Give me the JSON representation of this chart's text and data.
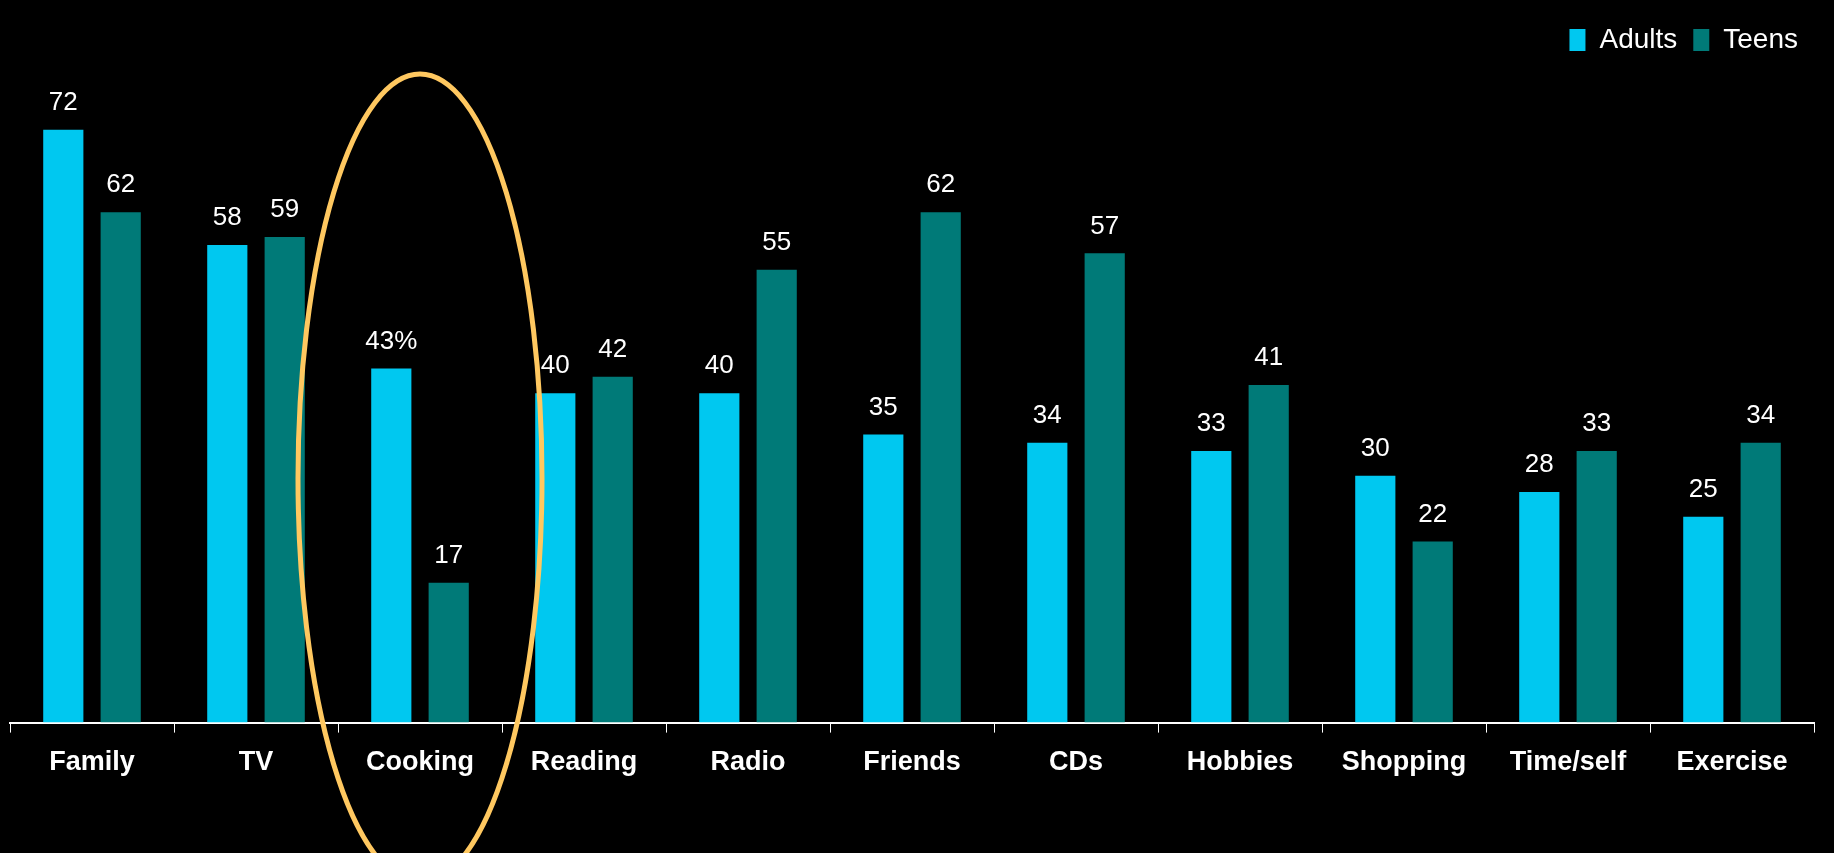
{
  "chart_data": {
    "type": "bar",
    "categories": [
      "Family",
      "TV",
      "Cooking",
      "Reading",
      "Radio",
      "Friends",
      "CDs",
      "Hobbies",
      "Shopping",
      "Time/self",
      "Exercise"
    ],
    "series": [
      {
        "name": "Adults",
        "color": "#00c8f0",
        "values": [
          72,
          58,
          43,
          40,
          40,
          35,
          34,
          33,
          30,
          28,
          25
        ],
        "value_labels": [
          "72",
          "58",
          "43%",
          "40",
          "40",
          "35",
          "34",
          "33",
          "30",
          "28",
          "25"
        ]
      },
      {
        "name": "Teens",
        "color": "#007a78",
        "values": [
          62,
          59,
          17,
          42,
          55,
          62,
          57,
          41,
          22,
          33,
          34
        ],
        "value_labels": [
          "62",
          "59",
          "17",
          "42",
          "55",
          "62",
          "57",
          "41",
          "22",
          "33",
          "34"
        ]
      }
    ],
    "legend": "top right",
    "grid": false
  }
}
